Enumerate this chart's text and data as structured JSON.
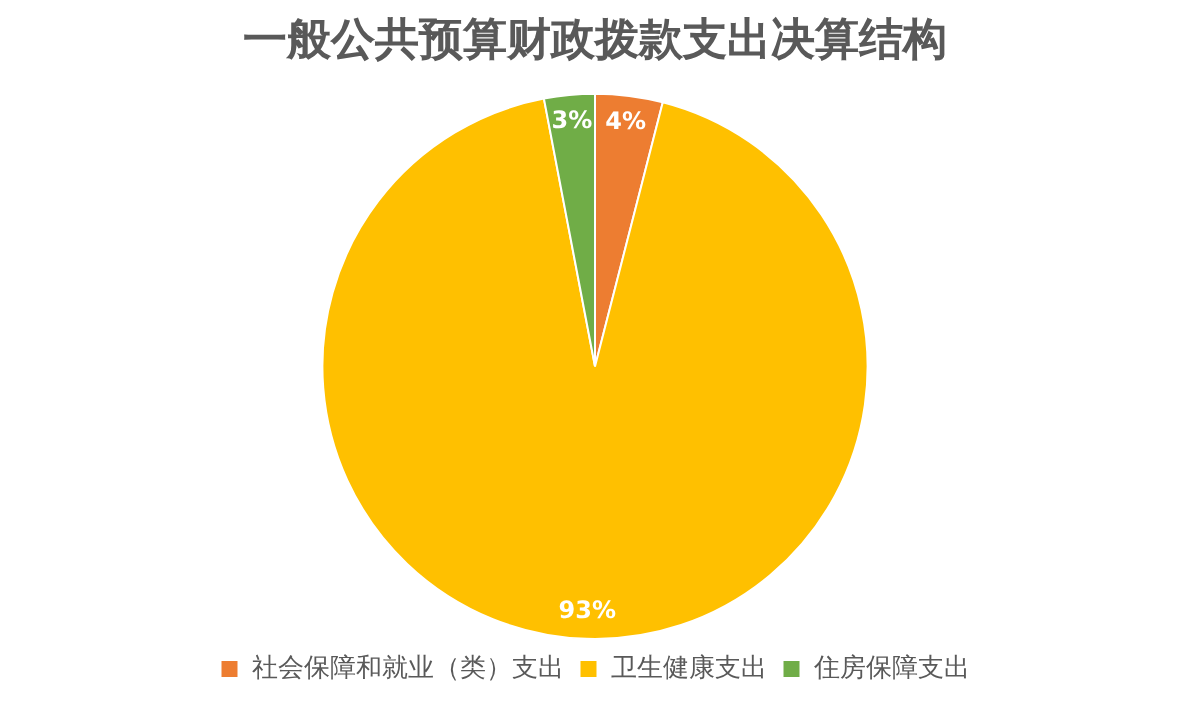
{
  "chart_data": {
    "type": "pie",
    "title": "一般公共预算财政拨款支出决算结构",
    "categories": [
      "社会保障和就业（类）支出",
      "卫生健康支出",
      "住房保障支出"
    ],
    "values": [
      4,
      93,
      3
    ],
    "colors": [
      "#ed7d31",
      "#ffc000",
      "#70ad47"
    ],
    "value_labels": [
      "4%",
      "93%",
      "3%"
    ],
    "legend": "bottom"
  }
}
